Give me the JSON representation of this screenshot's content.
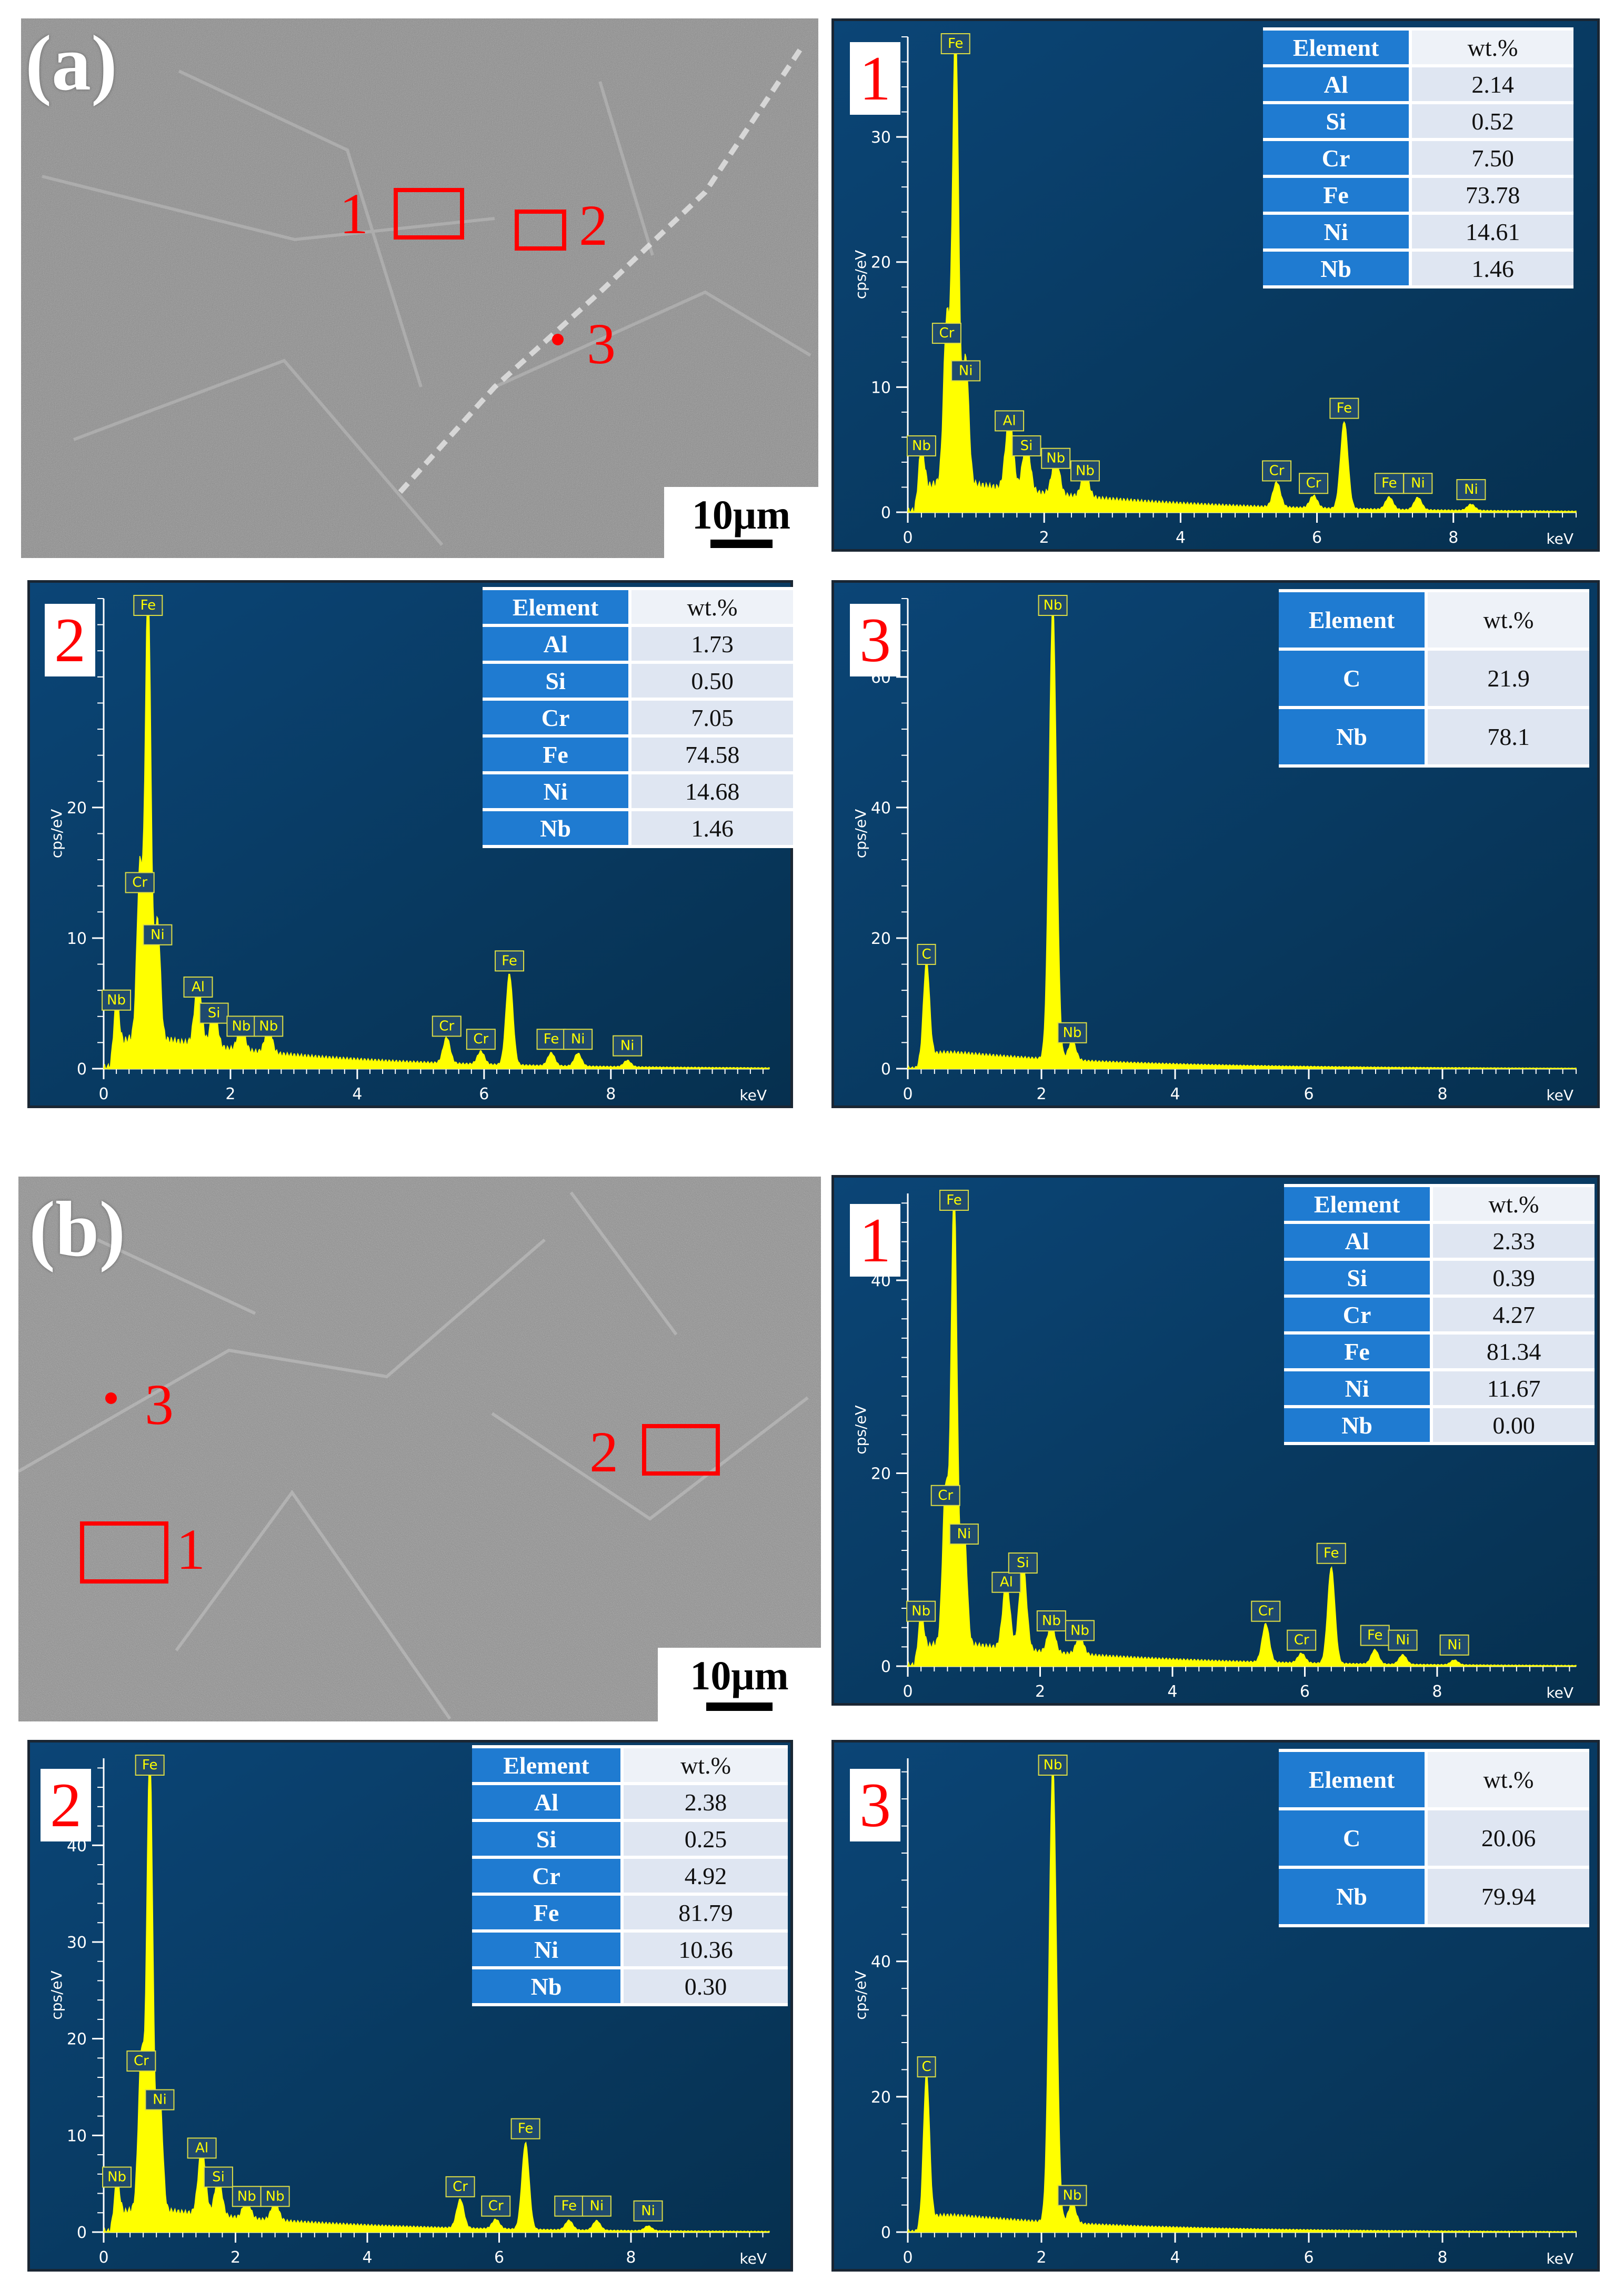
{
  "figure": {
    "sem_a": {
      "label": "(a)",
      "scale_bar": "10μm",
      "markers": [
        {
          "id": "1",
          "kind": "box"
        },
        {
          "id": "2",
          "kind": "box"
        },
        {
          "id": "3",
          "kind": "point"
        }
      ]
    },
    "sem_b": {
      "label": "(b)",
      "scale_bar": "10μm",
      "markers": [
        {
          "id": "1",
          "kind": "box"
        },
        {
          "id": "2",
          "kind": "box"
        },
        {
          "id": "3",
          "kind": "point"
        }
      ]
    }
  },
  "table_headers": {
    "element": "Element",
    "wt": "wt.%"
  },
  "chart_data": [
    {
      "type": "line",
      "group": "(a)",
      "panel": "1",
      "xlabel": "keV",
      "ylabel": "cps/eV",
      "xlim": [
        0,
        9.8
      ],
      "ylim": [
        0,
        38
      ],
      "x_ticks": [
        "0",
        "2",
        "4",
        "6",
        "8"
      ],
      "y_ticks": [
        "0",
        "10",
        "20",
        "30"
      ],
      "peaks": [
        {
          "el": "Nb",
          "x": 0.2,
          "y": 4
        },
        {
          "el": "Fe",
          "x": 0.7,
          "y": 37
        },
        {
          "el": "Cr",
          "x": 0.57,
          "y": 13
        },
        {
          "el": "Ni",
          "x": 0.85,
          "y": 10
        },
        {
          "el": "Al",
          "x": 1.49,
          "y": 6
        },
        {
          "el": "Si",
          "x": 1.74,
          "y": 4
        },
        {
          "el": "Nb",
          "x": 2.17,
          "y": 3
        },
        {
          "el": "Nb",
          "x": 2.6,
          "y": 2
        },
        {
          "el": "Cr",
          "x": 5.41,
          "y": 2
        },
        {
          "el": "Cr",
          "x": 5.95,
          "y": 1
        },
        {
          "el": "Fe",
          "x": 6.4,
          "y": 7
        },
        {
          "el": "Fe",
          "x": 7.06,
          "y": 1
        },
        {
          "el": "Ni",
          "x": 7.48,
          "y": 1
        },
        {
          "el": "Ni",
          "x": 8.26,
          "y": 0.5
        }
      ],
      "table": [
        [
          "Al",
          "2.14"
        ],
        [
          "Si",
          "0.52"
        ],
        [
          "Cr",
          "7.50"
        ],
        [
          "Fe",
          "73.78"
        ],
        [
          "Ni",
          "14.61"
        ],
        [
          "Nb",
          "1.46"
        ]
      ]
    },
    {
      "type": "line",
      "group": "(a)",
      "panel": "2",
      "xlabel": "keV",
      "ylabel": "cps/eV",
      "xlim": [
        0,
        10.5
      ],
      "ylim": [
        0,
        36
      ],
      "x_ticks": [
        "0",
        "2",
        "4",
        "6",
        "8"
      ],
      "y_ticks": [
        "0",
        "10",
        "20"
      ],
      "peaks": [
        {
          "el": "Nb",
          "x": 0.2,
          "y": 4
        },
        {
          "el": "Fe",
          "x": 0.7,
          "y": 35
        },
        {
          "el": "Cr",
          "x": 0.57,
          "y": 13
        },
        {
          "el": "Ni",
          "x": 0.85,
          "y": 9
        },
        {
          "el": "Al",
          "x": 1.49,
          "y": 5
        },
        {
          "el": "Si",
          "x": 1.74,
          "y": 3
        },
        {
          "el": "Nb",
          "x": 2.17,
          "y": 2
        },
        {
          "el": "Nb",
          "x": 2.6,
          "y": 2
        },
        {
          "el": "Cr",
          "x": 5.41,
          "y": 2
        },
        {
          "el": "Cr",
          "x": 5.95,
          "y": 1
        },
        {
          "el": "Fe",
          "x": 6.4,
          "y": 7
        },
        {
          "el": "Fe",
          "x": 7.06,
          "y": 1
        },
        {
          "el": "Ni",
          "x": 7.48,
          "y": 1
        },
        {
          "el": "Ni",
          "x": 8.26,
          "y": 0.5
        }
      ],
      "table": [
        [
          "Al",
          "1.73"
        ],
        [
          "Si",
          "0.50"
        ],
        [
          "Cr",
          "7.05"
        ],
        [
          "Fe",
          "74.58"
        ],
        [
          "Ni",
          "14.68"
        ],
        [
          "Nb",
          "1.46"
        ]
      ]
    },
    {
      "type": "line",
      "group": "(a)",
      "panel": "3",
      "xlabel": "keV",
      "ylabel": "cps/eV",
      "xlim": [
        0,
        10
      ],
      "ylim": [
        0,
        72
      ],
      "x_ticks": [
        "0",
        "2",
        "4",
        "6",
        "8"
      ],
      "y_ticks": [
        "0",
        "20",
        "40",
        "60"
      ],
      "peaks": [
        {
          "el": "C",
          "x": 0.28,
          "y": 15
        },
        {
          "el": "Nb",
          "x": 2.17,
          "y": 70
        },
        {
          "el": "Nb",
          "x": 2.46,
          "y": 3
        }
      ],
      "table": [
        [
          "C",
          "21.9"
        ],
        [
          "Nb",
          "78.1"
        ]
      ]
    },
    {
      "type": "line",
      "group": "(b)",
      "panel": "1",
      "xlabel": "keV",
      "ylabel": "cps/eV",
      "xlim": [
        0,
        10.1
      ],
      "ylim": [
        0,
        49
      ],
      "x_ticks": [
        "0",
        "2",
        "4",
        "6",
        "8"
      ],
      "y_ticks": [
        "0",
        "20",
        "40"
      ],
      "peaks": [
        {
          "el": "Nb",
          "x": 0.2,
          "y": 4
        },
        {
          "el": "Fe",
          "x": 0.7,
          "y": 48
        },
        {
          "el": "Cr",
          "x": 0.57,
          "y": 16
        },
        {
          "el": "Ni",
          "x": 0.85,
          "y": 12
        },
        {
          "el": "Al",
          "x": 1.49,
          "y": 7
        },
        {
          "el": "Si",
          "x": 1.74,
          "y": 9
        },
        {
          "el": "Nb",
          "x": 2.17,
          "y": 3
        },
        {
          "el": "Nb",
          "x": 2.6,
          "y": 2
        },
        {
          "el": "Cr",
          "x": 5.41,
          "y": 4
        },
        {
          "el": "Cr",
          "x": 5.95,
          "y": 1
        },
        {
          "el": "Fe",
          "x": 6.4,
          "y": 10
        },
        {
          "el": "Fe",
          "x": 7.06,
          "y": 1.5
        },
        {
          "el": "Ni",
          "x": 7.48,
          "y": 1
        },
        {
          "el": "Ni",
          "x": 8.26,
          "y": 0.5
        }
      ],
      "table": [
        [
          "Al",
          "2.33"
        ],
        [
          "Si",
          "0.39"
        ],
        [
          "Cr",
          "4.27"
        ],
        [
          "Fe",
          "81.34"
        ],
        [
          "Ni",
          "11.67"
        ],
        [
          "Nb",
          "0.00"
        ]
      ]
    },
    {
      "type": "line",
      "group": "(b)",
      "panel": "2",
      "xlabel": "keV",
      "ylabel": "cps/eV",
      "xlim": [
        0,
        10.1
      ],
      "ylim": [
        0,
        49
      ],
      "x_ticks": [
        "0",
        "2",
        "4",
        "6",
        "8"
      ],
      "y_ticks": [
        "0",
        "10",
        "20",
        "30",
        "40"
      ],
      "peaks": [
        {
          "el": "Nb",
          "x": 0.2,
          "y": 4
        },
        {
          "el": "Fe",
          "x": 0.7,
          "y": 48
        },
        {
          "el": "Cr",
          "x": 0.57,
          "y": 16
        },
        {
          "el": "Ni",
          "x": 0.85,
          "y": 12
        },
        {
          "el": "Al",
          "x": 1.49,
          "y": 7
        },
        {
          "el": "Si",
          "x": 1.74,
          "y": 4
        },
        {
          "el": "Nb",
          "x": 2.17,
          "y": 2
        },
        {
          "el": "Nb",
          "x": 2.6,
          "y": 2
        },
        {
          "el": "Cr",
          "x": 5.41,
          "y": 3
        },
        {
          "el": "Cr",
          "x": 5.95,
          "y": 1
        },
        {
          "el": "Fe",
          "x": 6.4,
          "y": 9
        },
        {
          "el": "Fe",
          "x": 7.06,
          "y": 1
        },
        {
          "el": "Ni",
          "x": 7.48,
          "y": 1
        },
        {
          "el": "Ni",
          "x": 8.26,
          "y": 0.5
        }
      ],
      "table": [
        [
          "Al",
          "2.38"
        ],
        [
          "Si",
          "0.25"
        ],
        [
          "Cr",
          "4.92"
        ],
        [
          "Fe",
          "81.79"
        ],
        [
          "Ni",
          "10.36"
        ],
        [
          "Nb",
          "0.30"
        ]
      ]
    },
    {
      "type": "line",
      "group": "(b)",
      "panel": "3",
      "xlabel": "keV",
      "ylabel": "cps/eV",
      "xlim": [
        0,
        10
      ],
      "ylim": [
        0,
        70
      ],
      "x_ticks": [
        "0",
        "2",
        "4",
        "6",
        "8"
      ],
      "y_ticks": [
        "0",
        "20",
        "40"
      ],
      "peaks": [
        {
          "el": "C",
          "x": 0.28,
          "y": 22
        },
        {
          "el": "Nb",
          "x": 2.17,
          "y": 68
        },
        {
          "el": "Nb",
          "x": 2.46,
          "y": 3
        }
      ],
      "table": [
        [
          "C",
          "20.06"
        ],
        [
          "Nb",
          "79.94"
        ]
      ]
    }
  ],
  "colors": {
    "bg": "#0b4576",
    "bg_dark": "#06304f",
    "spectrum": "#ffff00",
    "marker": "#ff0000"
  }
}
